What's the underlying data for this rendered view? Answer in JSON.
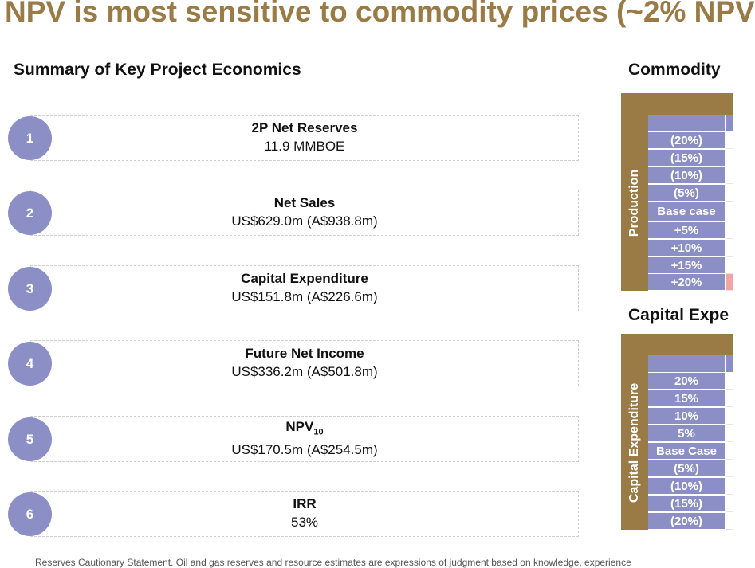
{
  "title": "NPV is most sensitive to commodity prices (~2% NPV",
  "left_heading": "Summary of Key Project Economics",
  "metrics": [
    {
      "num": "1",
      "label": "2P Net Reserves",
      "value": "11.9 MMBOE"
    },
    {
      "num": "2",
      "label": "Net Sales",
      "value": "US$629.0m (A$938.8m)"
    },
    {
      "num": "3",
      "label": "Capital Expenditure",
      "value": "US$151.8m (A$226.6m)"
    },
    {
      "num": "4",
      "label": "Future Net Income",
      "value": "US$336.2m (A$501.8m)"
    },
    {
      "num": "5",
      "label": "NPV",
      "label_sub": "10",
      "value": "US$170.5m (A$254.5m)"
    },
    {
      "num": "6",
      "label": "IRR",
      "value": "53%"
    }
  ],
  "commodity": {
    "heading": "Commodity",
    "axis_label": "Production",
    "rows": [
      "(20%)",
      "(15%)",
      "(10%)",
      "(5%)",
      "Base case",
      "+5%",
      "+10%",
      "+15%",
      "+20%"
    ]
  },
  "capex": {
    "heading": "Capital Expe",
    "axis_label": "Capital Expenditure",
    "rows": [
      "20%",
      "15%",
      "10%",
      "5%",
      "Base Case",
      "(5%)",
      "(10%)",
      "(15%)",
      "(20%)"
    ]
  },
  "footnote": "Reserves Cautionary Statement. Oil and gas reserves and resource estimates are expressions of judgment based on knowledge, experience"
}
